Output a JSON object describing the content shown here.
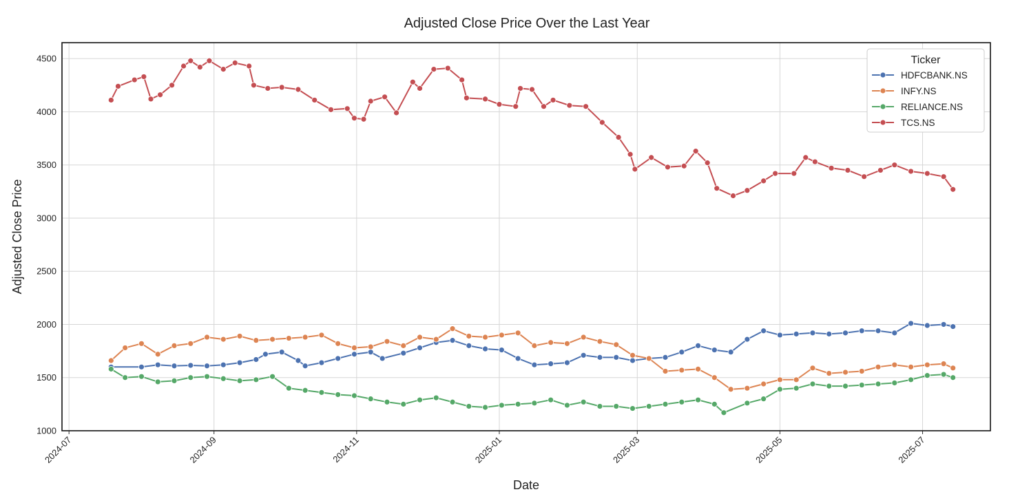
{
  "chart_data": {
    "type": "line",
    "title": "Adjusted Close Price Over the Last Year",
    "xlabel": "Date",
    "ylabel": "Adjusted Close Price",
    "xlim": [
      "2024-06-28",
      "2025-07-30"
    ],
    "ylim": [
      1000,
      4650
    ],
    "x_ticks": [
      "2024-07",
      "2024-09",
      "2024-11",
      "2025-01",
      "2025-03",
      "2025-05",
      "2025-07"
    ],
    "x_tick_dates": [
      "2024-07-01",
      "2024-09-01",
      "2024-11-01",
      "2025-01-01",
      "2025-03-01",
      "2025-05-01",
      "2025-07-01"
    ],
    "y_ticks": [
      1000,
      1500,
      2000,
      2500,
      3000,
      3500,
      4000,
      4500
    ],
    "grid": true,
    "marker": "circle",
    "legend": {
      "title": "Ticker",
      "position": "top-right"
    },
    "series": [
      {
        "name": "HDFCBANK.NS",
        "color": "#4c72b0",
        "points": [
          [
            "2024-07-19",
            1600
          ],
          [
            "2024-08-01",
            1600
          ],
          [
            "2024-08-08",
            1620
          ],
          [
            "2024-08-15",
            1610
          ],
          [
            "2024-08-22",
            1615
          ],
          [
            "2024-08-29",
            1610
          ],
          [
            "2024-09-05",
            1620
          ],
          [
            "2024-09-12",
            1640
          ],
          [
            "2024-09-19",
            1670
          ],
          [
            "2024-09-23",
            1720
          ],
          [
            "2024-09-30",
            1740
          ],
          [
            "2024-10-07",
            1660
          ],
          [
            "2024-10-10",
            1610
          ],
          [
            "2024-10-17",
            1640
          ],
          [
            "2024-10-24",
            1680
          ],
          [
            "2024-10-31",
            1720
          ],
          [
            "2024-11-07",
            1740
          ],
          [
            "2024-11-12",
            1680
          ],
          [
            "2024-11-21",
            1730
          ],
          [
            "2024-11-28",
            1780
          ],
          [
            "2024-12-05",
            1830
          ],
          [
            "2024-12-12",
            1850
          ],
          [
            "2024-12-19",
            1800
          ],
          [
            "2024-12-26",
            1770
          ],
          [
            "2025-01-02",
            1760
          ],
          [
            "2025-01-09",
            1680
          ],
          [
            "2025-01-16",
            1620
          ],
          [
            "2025-01-23",
            1630
          ],
          [
            "2025-01-30",
            1640
          ],
          [
            "2025-02-06",
            1710
          ],
          [
            "2025-02-13",
            1690
          ],
          [
            "2025-02-20",
            1690
          ],
          [
            "2025-02-27",
            1660
          ],
          [
            "2025-03-06",
            1680
          ],
          [
            "2025-03-13",
            1690
          ],
          [
            "2025-03-20",
            1740
          ],
          [
            "2025-03-27",
            1800
          ],
          [
            "2025-04-03",
            1760
          ],
          [
            "2025-04-10",
            1740
          ],
          [
            "2025-04-17",
            1860
          ],
          [
            "2025-04-24",
            1940
          ],
          [
            "2025-05-01",
            1900
          ],
          [
            "2025-05-08",
            1910
          ],
          [
            "2025-05-15",
            1920
          ],
          [
            "2025-05-22",
            1910
          ],
          [
            "2025-05-29",
            1920
          ],
          [
            "2025-06-05",
            1940
          ],
          [
            "2025-06-12",
            1940
          ],
          [
            "2025-06-19",
            1920
          ],
          [
            "2025-06-26",
            2010
          ],
          [
            "2025-07-03",
            1990
          ],
          [
            "2025-07-10",
            2000
          ],
          [
            "2025-07-14",
            1980
          ]
        ]
      },
      {
        "name": "INFY.NS",
        "color": "#dd8452",
        "points": [
          [
            "2024-07-19",
            1660
          ],
          [
            "2024-07-25",
            1780
          ],
          [
            "2024-08-01",
            1820
          ],
          [
            "2024-08-08",
            1720
          ],
          [
            "2024-08-15",
            1800
          ],
          [
            "2024-08-22",
            1820
          ],
          [
            "2024-08-29",
            1880
          ],
          [
            "2024-09-05",
            1860
          ],
          [
            "2024-09-12",
            1890
          ],
          [
            "2024-09-19",
            1850
          ],
          [
            "2024-09-26",
            1860
          ],
          [
            "2024-10-03",
            1870
          ],
          [
            "2024-10-10",
            1880
          ],
          [
            "2024-10-17",
            1900
          ],
          [
            "2024-10-24",
            1820
          ],
          [
            "2024-10-31",
            1780
          ],
          [
            "2024-11-07",
            1790
          ],
          [
            "2024-11-14",
            1840
          ],
          [
            "2024-11-21",
            1800
          ],
          [
            "2024-11-28",
            1880
          ],
          [
            "2024-12-05",
            1860
          ],
          [
            "2024-12-12",
            1960
          ],
          [
            "2024-12-19",
            1890
          ],
          [
            "2024-12-26",
            1880
          ],
          [
            "2025-01-02",
            1900
          ],
          [
            "2025-01-09",
            1920
          ],
          [
            "2025-01-16",
            1800
          ],
          [
            "2025-01-23",
            1830
          ],
          [
            "2025-01-30",
            1820
          ],
          [
            "2025-02-06",
            1880
          ],
          [
            "2025-02-13",
            1840
          ],
          [
            "2025-02-20",
            1810
          ],
          [
            "2025-02-27",
            1710
          ],
          [
            "2025-03-06",
            1680
          ],
          [
            "2025-03-13",
            1560
          ],
          [
            "2025-03-20",
            1570
          ],
          [
            "2025-03-27",
            1580
          ],
          [
            "2025-04-03",
            1500
          ],
          [
            "2025-04-10",
            1390
          ],
          [
            "2025-04-17",
            1400
          ],
          [
            "2025-04-24",
            1440
          ],
          [
            "2025-05-01",
            1480
          ],
          [
            "2025-05-08",
            1480
          ],
          [
            "2025-05-15",
            1590
          ],
          [
            "2025-05-22",
            1540
          ],
          [
            "2025-05-29",
            1550
          ],
          [
            "2025-06-05",
            1560
          ],
          [
            "2025-06-12",
            1600
          ],
          [
            "2025-06-19",
            1620
          ],
          [
            "2025-06-26",
            1600
          ],
          [
            "2025-07-03",
            1620
          ],
          [
            "2025-07-10",
            1630
          ],
          [
            "2025-07-14",
            1590
          ]
        ]
      },
      {
        "name": "RELIANCE.NS",
        "color": "#55a868",
        "points": [
          [
            "2024-07-19",
            1580
          ],
          [
            "2024-07-25",
            1500
          ],
          [
            "2024-08-01",
            1510
          ],
          [
            "2024-08-08",
            1460
          ],
          [
            "2024-08-15",
            1470
          ],
          [
            "2024-08-22",
            1500
          ],
          [
            "2024-08-29",
            1510
          ],
          [
            "2024-09-05",
            1490
          ],
          [
            "2024-09-12",
            1470
          ],
          [
            "2024-09-19",
            1480
          ],
          [
            "2024-09-26",
            1510
          ],
          [
            "2024-10-03",
            1400
          ],
          [
            "2024-10-10",
            1380
          ],
          [
            "2024-10-17",
            1360
          ],
          [
            "2024-10-24",
            1340
          ],
          [
            "2024-10-31",
            1330
          ],
          [
            "2024-11-07",
            1300
          ],
          [
            "2024-11-14",
            1270
          ],
          [
            "2024-11-21",
            1250
          ],
          [
            "2024-11-28",
            1290
          ],
          [
            "2024-12-05",
            1310
          ],
          [
            "2024-12-12",
            1270
          ],
          [
            "2024-12-19",
            1230
          ],
          [
            "2024-12-26",
            1220
          ],
          [
            "2025-01-02",
            1240
          ],
          [
            "2025-01-09",
            1250
          ],
          [
            "2025-01-16",
            1260
          ],
          [
            "2025-01-23",
            1290
          ],
          [
            "2025-01-30",
            1240
          ],
          [
            "2025-02-06",
            1270
          ],
          [
            "2025-02-13",
            1230
          ],
          [
            "2025-02-20",
            1230
          ],
          [
            "2025-02-27",
            1210
          ],
          [
            "2025-03-06",
            1230
          ],
          [
            "2025-03-13",
            1250
          ],
          [
            "2025-03-20",
            1270
          ],
          [
            "2025-03-27",
            1290
          ],
          [
            "2025-04-03",
            1250
          ],
          [
            "2025-04-07",
            1170
          ],
          [
            "2025-04-17",
            1260
          ],
          [
            "2025-04-24",
            1300
          ],
          [
            "2025-05-01",
            1390
          ],
          [
            "2025-05-08",
            1400
          ],
          [
            "2025-05-15",
            1440
          ],
          [
            "2025-05-22",
            1420
          ],
          [
            "2025-05-29",
            1420
          ],
          [
            "2025-06-05",
            1430
          ],
          [
            "2025-06-12",
            1440
          ],
          [
            "2025-06-19",
            1450
          ],
          [
            "2025-06-26",
            1480
          ],
          [
            "2025-07-03",
            1520
          ],
          [
            "2025-07-10",
            1530
          ],
          [
            "2025-07-14",
            1500
          ]
        ]
      },
      {
        "name": "TCS.NS",
        "color": "#c44e52",
        "points": [
          [
            "2024-07-19",
            4110
          ],
          [
            "2024-07-22",
            4240
          ],
          [
            "2024-07-29",
            4300
          ],
          [
            "2024-08-02",
            4330
          ],
          [
            "2024-08-05",
            4120
          ],
          [
            "2024-08-09",
            4160
          ],
          [
            "2024-08-14",
            4250
          ],
          [
            "2024-08-19",
            4430
          ],
          [
            "2024-08-22",
            4480
          ],
          [
            "2024-08-26",
            4420
          ],
          [
            "2024-08-30",
            4480
          ],
          [
            "2024-09-05",
            4400
          ],
          [
            "2024-09-10",
            4460
          ],
          [
            "2024-09-16",
            4430
          ],
          [
            "2024-09-18",
            4250
          ],
          [
            "2024-09-24",
            4220
          ],
          [
            "2024-09-30",
            4230
          ],
          [
            "2024-10-07",
            4210
          ],
          [
            "2024-10-14",
            4110
          ],
          [
            "2024-10-21",
            4020
          ],
          [
            "2024-10-28",
            4030
          ],
          [
            "2024-10-31",
            3940
          ],
          [
            "2024-11-04",
            3930
          ],
          [
            "2024-11-07",
            4100
          ],
          [
            "2024-11-13",
            4140
          ],
          [
            "2024-11-18",
            3990
          ],
          [
            "2024-11-25",
            4280
          ],
          [
            "2024-11-28",
            4220
          ],
          [
            "2024-12-04",
            4400
          ],
          [
            "2024-12-10",
            4410
          ],
          [
            "2024-12-16",
            4300
          ],
          [
            "2024-12-18",
            4130
          ],
          [
            "2024-12-26",
            4120
          ],
          [
            "2025-01-01",
            4070
          ],
          [
            "2025-01-08",
            4050
          ],
          [
            "2025-01-10",
            4220
          ],
          [
            "2025-01-15",
            4210
          ],
          [
            "2025-01-20",
            4050
          ],
          [
            "2025-01-24",
            4110
          ],
          [
            "2025-01-31",
            4060
          ],
          [
            "2025-02-07",
            4050
          ],
          [
            "2025-02-14",
            3900
          ],
          [
            "2025-02-21",
            3760
          ],
          [
            "2025-02-26",
            3600
          ],
          [
            "2025-02-28",
            3460
          ],
          [
            "2025-03-07",
            3570
          ],
          [
            "2025-03-14",
            3480
          ],
          [
            "2025-03-21",
            3490
          ],
          [
            "2025-03-26",
            3630
          ],
          [
            "2025-03-31",
            3520
          ],
          [
            "2025-04-04",
            3280
          ],
          [
            "2025-04-11",
            3210
          ],
          [
            "2025-04-17",
            3260
          ],
          [
            "2025-04-24",
            3350
          ],
          [
            "2025-04-29",
            3420
          ],
          [
            "2025-05-07",
            3420
          ],
          [
            "2025-05-12",
            3570
          ],
          [
            "2025-05-16",
            3530
          ],
          [
            "2025-05-23",
            3470
          ],
          [
            "2025-05-30",
            3450
          ],
          [
            "2025-06-06",
            3390
          ],
          [
            "2025-06-13",
            3450
          ],
          [
            "2025-06-19",
            3500
          ],
          [
            "2025-06-26",
            3440
          ],
          [
            "2025-07-03",
            3420
          ],
          [
            "2025-07-10",
            3390
          ],
          [
            "2025-07-14",
            3270
          ]
        ]
      }
    ]
  }
}
